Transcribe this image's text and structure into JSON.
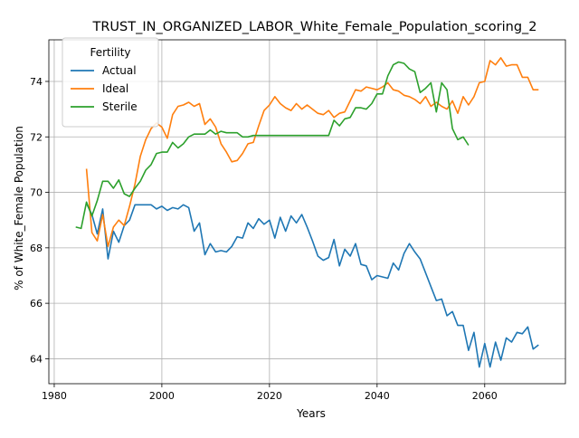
{
  "chart_data": {
    "type": "line",
    "title": "TRUST_IN_ORGANIZED_LABOR_White_Female_Population_scoring_2",
    "xlabel": "Years",
    "ylabel": "% of White_Female Population",
    "xlim": [
      1979,
      2075
    ],
    "ylim": [
      63.1,
      75.5
    ],
    "xticks": [
      1980,
      2000,
      2020,
      2040,
      2060
    ],
    "yticks": [
      64,
      66,
      68,
      70,
      72,
      74
    ],
    "grid": true,
    "legend": {
      "title": "Fertility",
      "position": "top-left"
    },
    "series": [
      {
        "name": "Actual",
        "color": "#1f77b4",
        "x": [
          1986,
          1987,
          1988,
          1989,
          1990,
          1991,
          1992,
          1993,
          1994,
          1995,
          1996,
          1997,
          1998,
          1999,
          2000,
          2001,
          2002,
          2003,
          2004,
          2005,
          2006,
          2007,
          2008,
          2009,
          2010,
          2011,
          2012,
          2013,
          2014,
          2015,
          2016,
          2017,
          2018,
          2019,
          2020,
          2021,
          2022,
          2023,
          2024,
          2025,
          2026,
          2027,
          2028,
          2029,
          2030,
          2031,
          2032,
          2033,
          2034,
          2035,
          2036,
          2037,
          2038,
          2039,
          2040,
          2041,
          2042,
          2043,
          2044,
          2045,
          2046,
          2047,
          2048,
          2049,
          2050,
          2051,
          2052,
          2053,
          2054,
          2055,
          2056,
          2057,
          2058,
          2059,
          2060,
          2061,
          2062,
          2063,
          2064,
          2065,
          2066,
          2067,
          2068,
          2069,
          2070
        ],
        "y": [
          69.6,
          69.2,
          68.5,
          69.4,
          67.6,
          68.6,
          68.2,
          68.8,
          69.0,
          69.55,
          69.55,
          69.55,
          69.55,
          69.4,
          69.5,
          69.35,
          69.45,
          69.4,
          69.55,
          69.45,
          68.6,
          68.9,
          67.75,
          68.15,
          67.85,
          67.9,
          67.85,
          68.05,
          68.4,
          68.35,
          68.9,
          68.7,
          69.05,
          68.85,
          69.0,
          68.35,
          69.1,
          68.6,
          69.15,
          68.9,
          69.2,
          68.75,
          68.25,
          67.7,
          67.55,
          67.65,
          68.3,
          67.35,
          67.95,
          67.7,
          68.15,
          67.4,
          67.35,
          66.85,
          67.0,
          66.95,
          66.9,
          67.45,
          67.2,
          67.8,
          68.15,
          67.85,
          67.6,
          67.1,
          66.6,
          66.1,
          66.15,
          65.55,
          65.7,
          65.2,
          65.2,
          64.3,
          64.95,
          63.7,
          64.55,
          63.7,
          64.6,
          63.95,
          64.75,
          64.6,
          64.95,
          64.9,
          65.15,
          64.35,
          64.5
        ]
      },
      {
        "name": "Ideal",
        "color": "#ff7f0e",
        "x": [
          1986,
          1987,
          1988,
          1989,
          1990,
          1991,
          1992,
          1993,
          1994,
          1995,
          1996,
          1997,
          1998,
          1999,
          2000,
          2001,
          2002,
          2003,
          2004,
          2005,
          2006,
          2007,
          2008,
          2009,
          2010,
          2011,
          2012,
          2013,
          2014,
          2015,
          2016,
          2017,
          2018,
          2019,
          2020,
          2021,
          2022,
          2023,
          2024,
          2025,
          2026,
          2027,
          2028,
          2029,
          2030,
          2031,
          2032,
          2033,
          2034,
          2035,
          2036,
          2037,
          2038,
          2039,
          2040,
          2041,
          2042,
          2043,
          2044,
          2045,
          2046,
          2047,
          2048,
          2049,
          2050,
          2051,
          2052,
          2053,
          2054,
          2055,
          2056,
          2057,
          2058,
          2059,
          2060,
          2061,
          2062,
          2063,
          2064,
          2065,
          2066,
          2067,
          2068,
          2069,
          2070
        ],
        "y": [
          70.85,
          68.55,
          68.25,
          69.2,
          68.05,
          68.75,
          69.0,
          68.8,
          69.5,
          70.3,
          71.3,
          71.9,
          72.3,
          72.5,
          72.35,
          71.95,
          72.8,
          73.1,
          73.15,
          73.25,
          73.1,
          73.2,
          72.45,
          72.65,
          72.35,
          71.75,
          71.45,
          71.1,
          71.15,
          71.4,
          71.75,
          71.8,
          72.4,
          72.95,
          73.15,
          73.45,
          73.2,
          73.05,
          72.95,
          73.2,
          73.0,
          73.15,
          73.0,
          72.85,
          72.8,
          72.95,
          72.7,
          72.85,
          72.9,
          73.3,
          73.7,
          73.65,
          73.8,
          73.75,
          73.7,
          73.8,
          73.95,
          73.7,
          73.65,
          73.5,
          73.45,
          73.35,
          73.2,
          73.45,
          73.1,
          73.25,
          73.1,
          73.0,
          73.3,
          72.85,
          73.45,
          73.15,
          73.45,
          73.95,
          74.0,
          74.75,
          74.6,
          74.85,
          74.55,
          74.6,
          74.6,
          74.15,
          74.15,
          73.7,
          73.7
        ],
        "note_omit": false
      },
      {
        "name": "Sterile",
        "color": "#2ca02c",
        "x": [
          1984,
          1985,
          1986,
          1987,
          1988,
          1989,
          1990,
          1991,
          1992,
          1993,
          1994,
          1995,
          1996,
          1997,
          1998,
          1999,
          2000,
          2001,
          2002,
          2003,
          2004,
          2005,
          2006,
          2007,
          2008,
          2009,
          2010,
          2011,
          2012,
          2013,
          2014,
          2015,
          2016,
          2017,
          2018,
          2019,
          2020,
          2021,
          2022,
          2023,
          2024,
          2025,
          2026,
          2027,
          2028,
          2029,
          2030,
          2031,
          2032,
          2033,
          2034,
          2035,
          2036,
          2037,
          2038,
          2039,
          2040,
          2041,
          2042,
          2043,
          2044,
          2045,
          2046,
          2047,
          2048,
          2049,
          2050,
          2051,
          2052,
          2053,
          2054,
          2055,
          2056,
          2057
        ],
        "y": [
          68.75,
          68.7,
          69.65,
          69.15,
          69.7,
          70.4,
          70.4,
          70.15,
          70.45,
          69.95,
          69.85,
          70.15,
          70.4,
          70.8,
          71.0,
          71.4,
          71.45,
          71.45,
          71.8,
          71.6,
          71.75,
          72.0,
          72.1,
          72.1,
          72.1,
          72.25,
          72.1,
          72.2,
          72.15,
          72.15,
          72.15,
          72.0,
          72.0,
          72.05,
          72.05,
          72.05,
          72.05,
          72.05,
          72.05,
          72.05,
          72.05,
          72.05,
          72.05,
          72.05,
          72.05,
          72.05,
          72.05,
          72.05,
          72.6,
          72.4,
          72.65,
          72.7,
          73.05,
          73.05,
          73.0,
          73.2,
          73.55,
          73.55,
          74.2,
          74.6,
          74.7,
          74.65,
          74.45,
          74.35,
          73.6,
          73.75,
          73.95,
          72.9,
          73.95,
          73.7,
          72.3,
          71.9,
          72.0,
          71.7
        ]
      }
    ]
  }
}
